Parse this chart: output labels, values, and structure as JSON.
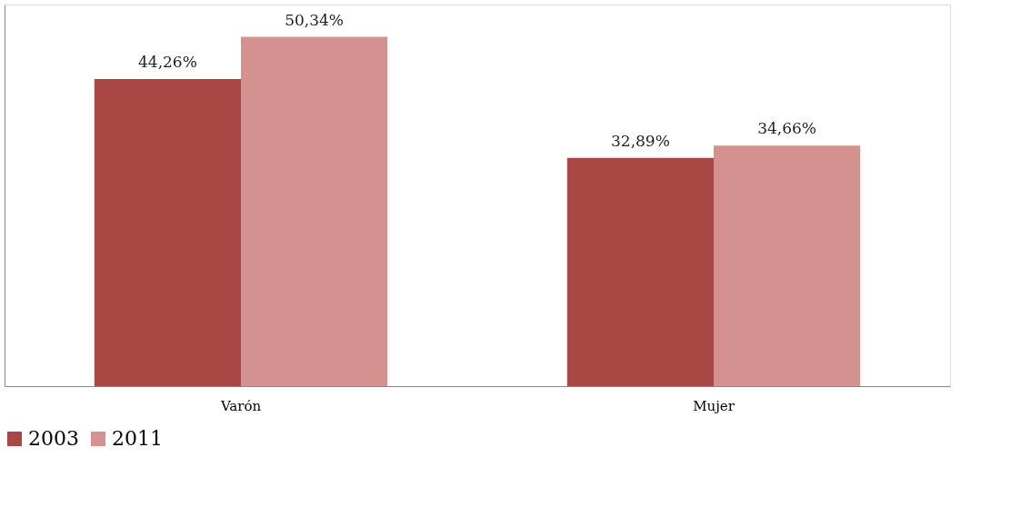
{
  "chart_data": {
    "type": "bar",
    "categories": [
      "Varón",
      "Mujer"
    ],
    "series": [
      {
        "name": "2003",
        "color": "#a84744",
        "values": [
          44.26,
          32.89
        ],
        "value_labels": [
          "44,26%",
          "32,89%"
        ]
      },
      {
        "name": "2011",
        "color": "#d39190",
        "values": [
          50.34,
          34.66
        ],
        "value_labels": [
          "50,34%",
          "34,66%"
        ]
      }
    ],
    "legend": "bottom",
    "grid": false,
    "tick_labels": "x"
  }
}
